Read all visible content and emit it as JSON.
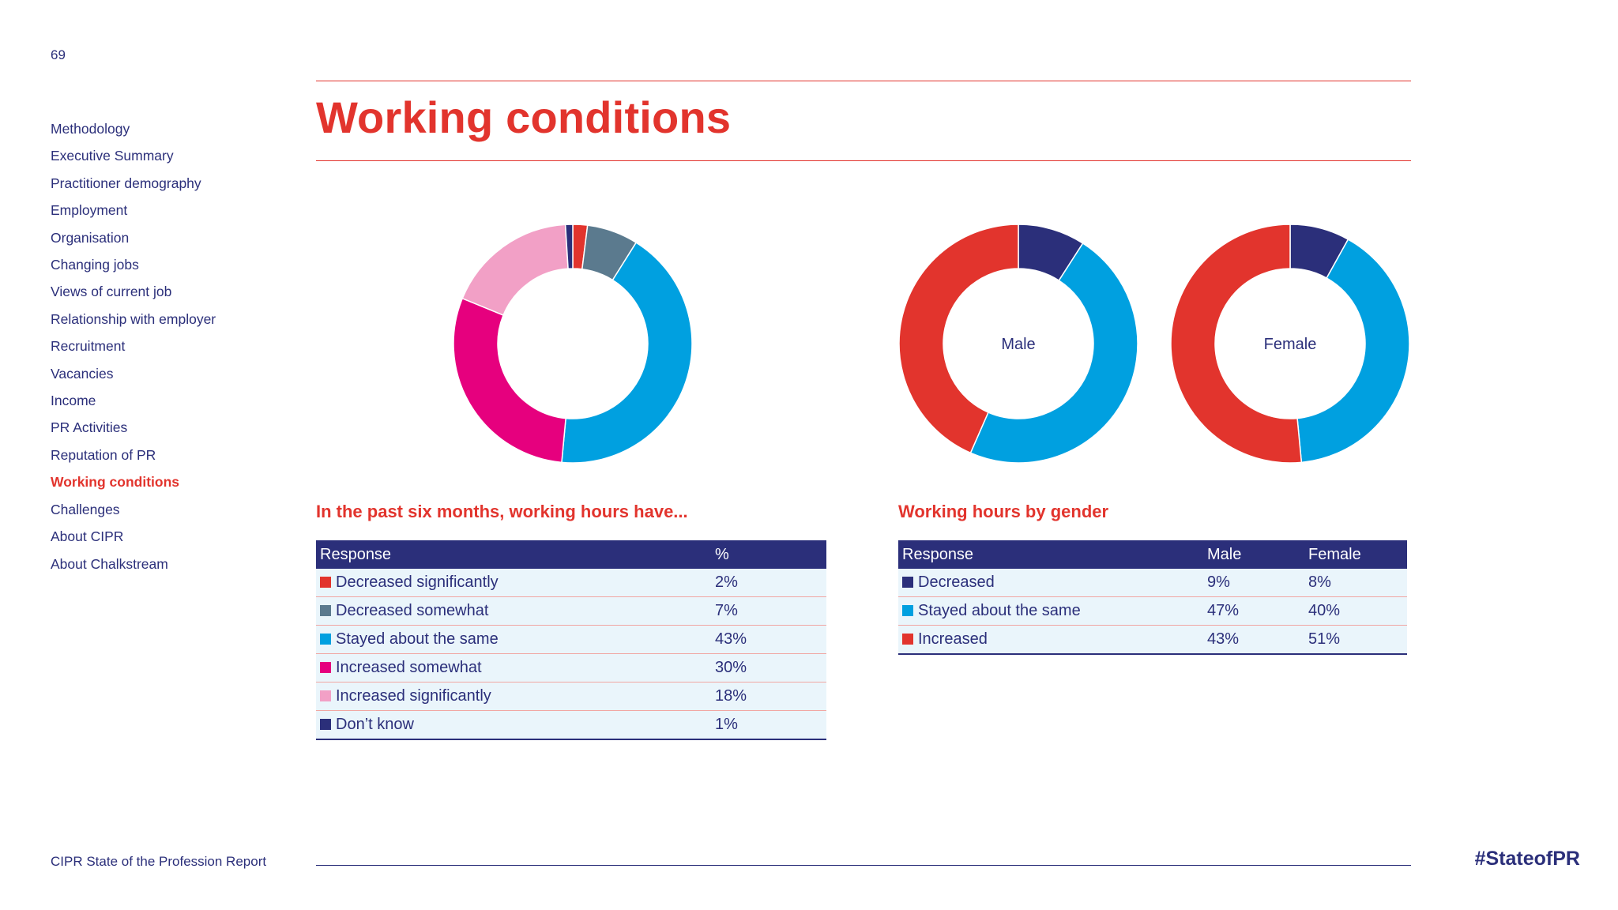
{
  "page_number": "69",
  "title": "Working conditions",
  "sidebar": {
    "items": [
      {
        "label": "Methodology",
        "active": false
      },
      {
        "label": "Executive Summary",
        "active": false
      },
      {
        "label": "Practitioner demography",
        "active": false
      },
      {
        "label": "Employment",
        "active": false
      },
      {
        "label": "Organisation",
        "active": false
      },
      {
        "label": "Changing jobs",
        "active": false
      },
      {
        "label": "Views of current job",
        "active": false
      },
      {
        "label": "Relationship with employer",
        "active": false
      },
      {
        "label": "Recruitment",
        "active": false
      },
      {
        "label": "Vacancies",
        "active": false
      },
      {
        "label": "Income",
        "active": false
      },
      {
        "label": "PR Activities",
        "active": false
      },
      {
        "label": "Reputation of PR",
        "active": false
      },
      {
        "label": "Working conditions",
        "active": true
      },
      {
        "label": "Challenges",
        "active": false
      },
      {
        "label": "About CIPR",
        "active": false
      },
      {
        "label": "About Chalkstream",
        "active": false
      }
    ]
  },
  "colors": {
    "navy": "#2b2f7a",
    "red": "#e2342d",
    "slate": "#5b7a8e",
    "cyan": "#00a0e0",
    "magenta": "#e6007e",
    "pink": "#f2a0c6"
  },
  "chart_data": [
    {
      "type": "pie",
      "style": "donut",
      "title": "In the past six months, working hours have...",
      "columns": [
        "Response",
        "%"
      ],
      "slices": [
        {
          "label": "Decreased significantly",
          "value": 2,
          "display": "2%",
          "color": "#e2342d"
        },
        {
          "label": "Decreased somewhat",
          "value": 7,
          "display": "7%",
          "color": "#5b7a8e"
        },
        {
          "label": "Stayed about the same",
          "value": 43,
          "display": "43%",
          "color": "#00a0e0"
        },
        {
          "label": "Increased somewhat",
          "value": 30,
          "display": "30%",
          "color": "#e6007e"
        },
        {
          "label": "Increased significantly",
          "value": 18,
          "display": "18%",
          "color": "#f2a0c6"
        },
        {
          "label": "Don’t know",
          "value": 1,
          "display": "1%",
          "color": "#2b2f7a"
        }
      ]
    },
    {
      "type": "pie",
      "style": "donut-pair",
      "title": "Working hours by gender",
      "columns": [
        "Response",
        "Male",
        "Female"
      ],
      "categories": [
        {
          "label": "Decreased",
          "color": "#2b2f7a"
        },
        {
          "label": "Stayed about the same",
          "color": "#00a0e0"
        },
        {
          "label": "Increased",
          "color": "#e2342d"
        }
      ],
      "series": [
        {
          "name": "Male",
          "values": [
            9,
            47,
            43
          ],
          "display": [
            "9%",
            "47%",
            "43%"
          ]
        },
        {
          "name": "Female",
          "values": [
            8,
            40,
            51
          ],
          "display": [
            "8%",
            "40%",
            "51%"
          ]
        }
      ]
    }
  ],
  "footer": {
    "report_name": "CIPR State of the Profession Report",
    "hashtag": "#StateofPR"
  }
}
